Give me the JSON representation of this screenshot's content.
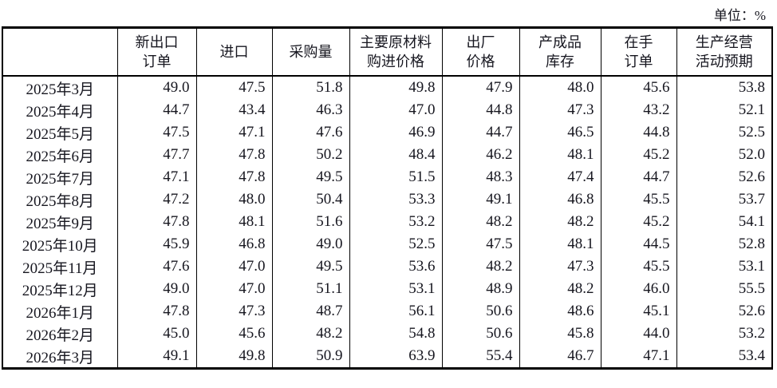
{
  "unit_label": "单位：%",
  "colors": {
    "text": "#16161f",
    "border": "#000000",
    "background": "#ffffff"
  },
  "chart_data": {
    "type": "table",
    "title": "",
    "unit": "%",
    "header": [
      {
        "id": "month",
        "lines": [
          ""
        ]
      },
      {
        "id": "new-export-orders",
        "lines": [
          "新出口",
          "订单"
        ]
      },
      {
        "id": "imports",
        "lines": [
          "进口"
        ]
      },
      {
        "id": "purchasing-volume",
        "lines": [
          "采购量"
        ]
      },
      {
        "id": "main-raw-material-purchase-prices",
        "lines": [
          "主要原材料",
          "购进价格"
        ]
      },
      {
        "id": "ex-factory-prices",
        "lines": [
          "出厂",
          "价格"
        ]
      },
      {
        "id": "finished-goods-inventory",
        "lines": [
          "产成品",
          "库存"
        ]
      },
      {
        "id": "orders-in-hand",
        "lines": [
          "在手",
          "订单"
        ]
      },
      {
        "id": "business-activity-expectations",
        "lines": [
          "生产经营",
          "活动预期"
        ]
      }
    ],
    "rows": [
      [
        "2025年3月",
        "49.0",
        "47.5",
        "51.8",
        "49.8",
        "47.9",
        "48.0",
        "45.6",
        "53.8"
      ],
      [
        "2025年4月",
        "44.7",
        "43.4",
        "46.3",
        "47.0",
        "44.8",
        "47.3",
        "43.2",
        "52.1"
      ],
      [
        "2025年5月",
        "47.5",
        "47.1",
        "47.6",
        "46.9",
        "44.7",
        "46.5",
        "44.8",
        "52.5"
      ],
      [
        "2025年6月",
        "47.7",
        "47.8",
        "50.2",
        "48.4",
        "46.2",
        "48.1",
        "45.2",
        "52.0"
      ],
      [
        "2025年7月",
        "47.1",
        "47.8",
        "49.5",
        "51.5",
        "48.3",
        "47.4",
        "44.7",
        "52.6"
      ],
      [
        "2025年8月",
        "47.2",
        "48.0",
        "50.4",
        "53.3",
        "49.1",
        "46.8",
        "45.5",
        "53.7"
      ],
      [
        "2025年9月",
        "47.8",
        "48.1",
        "51.6",
        "53.2",
        "48.2",
        "48.2",
        "45.2",
        "54.1"
      ],
      [
        "2025年10月",
        "45.9",
        "46.8",
        "49.0",
        "52.5",
        "47.5",
        "48.1",
        "44.5",
        "52.8"
      ],
      [
        "2025年11月",
        "47.6",
        "47.0",
        "49.5",
        "53.6",
        "48.2",
        "47.3",
        "45.5",
        "53.1"
      ],
      [
        "2025年12月",
        "49.0",
        "47.0",
        "51.1",
        "53.1",
        "48.9",
        "48.2",
        "46.0",
        "55.5"
      ],
      [
        "2026年1月",
        "47.8",
        "47.3",
        "48.7",
        "56.1",
        "50.6",
        "48.6",
        "45.1",
        "52.6"
      ],
      [
        "2026年2月",
        "45.0",
        "45.6",
        "48.2",
        "54.8",
        "50.6",
        "45.8",
        "44.0",
        "53.2"
      ],
      [
        "2026年3月",
        "49.1",
        "49.8",
        "50.9",
        "63.9",
        "55.4",
        "46.7",
        "47.1",
        "53.4"
      ]
    ]
  }
}
